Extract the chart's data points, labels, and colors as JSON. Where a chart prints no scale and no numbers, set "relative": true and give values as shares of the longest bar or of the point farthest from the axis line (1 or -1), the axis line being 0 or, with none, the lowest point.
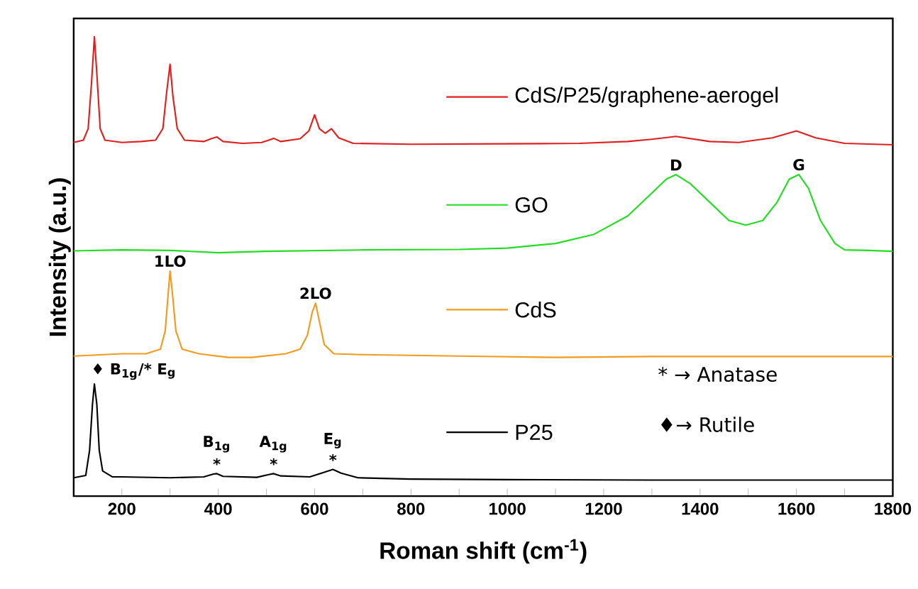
{
  "chart_data": {
    "type": "line",
    "relative": true,
    "xlabel": "Roman shift (cm$^{-1}$)",
    "ylabel": "Intensity (a.u.)",
    "xlim": [
      100,
      1800
    ],
    "xticks": [
      200,
      {
        "value": 300,
        "label": null
      },
      400,
      {
        "value": 500,
        "label": null
      },
      600,
      {
        "value": 700,
        "label": null
      },
      800,
      {
        "value": 900,
        "label": null
      },
      1000,
      {
        "value": 1100,
        "label": null
      },
      1200,
      {
        "value": 1300,
        "label": null
      },
      1400,
      {
        "value": 1500,
        "label": null
      },
      1600,
      {
        "value": 1700,
        "label": null
      },
      1800
    ],
    "tick_labels": "x",
    "grid": false,
    "legend": "right",
    "marker": "none",
    "line_style": "solid",
    "series": [
      {
        "name": "CdS/P25/graphene-aerogel",
        "color": "#e0201f",
        "x": [
          100,
          120,
          130,
          137,
          143,
          148,
          155,
          165,
          200,
          240,
          270,
          285,
          293,
          300,
          306,
          315,
          330,
          370,
          385,
          397,
          410,
          450,
          490,
          505,
          515,
          530,
          570,
          588,
          600,
          610,
          622,
          635,
          650,
          680,
          800,
          1000,
          1150,
          1250,
          1300,
          1350,
          1420,
          1480,
          1550,
          1600,
          1640,
          1700,
          1800
        ],
        "values": [
          0.77,
          0.775,
          0.8,
          0.9,
          1.0,
          0.92,
          0.8,
          0.775,
          0.77,
          0.772,
          0.775,
          0.8,
          0.88,
          0.94,
          0.87,
          0.8,
          0.775,
          0.772,
          0.778,
          0.782,
          0.772,
          0.768,
          0.77,
          0.775,
          0.779,
          0.772,
          0.778,
          0.795,
          0.83,
          0.8,
          0.79,
          0.8,
          0.78,
          0.768,
          0.766,
          0.767,
          0.768,
          0.772,
          0.777,
          0.783,
          0.772,
          0.77,
          0.78,
          0.795,
          0.78,
          0.768,
          0.765
        ]
      },
      {
        "name": "GO",
        "color": "#22dd22",
        "x": [
          100,
          200,
          300,
          400,
          500,
          700,
          900,
          1000,
          1100,
          1180,
          1250,
          1300,
          1330,
          1350,
          1380,
          1420,
          1460,
          1495,
          1530,
          1560,
          1585,
          1605,
          1625,
          1650,
          1680,
          1700,
          1750,
          1800
        ],
        "values": [
          0.534,
          0.536,
          0.535,
          0.53,
          0.533,
          0.536,
          0.537,
          0.54,
          0.55,
          0.57,
          0.61,
          0.66,
          0.69,
          0.7,
          0.68,
          0.64,
          0.6,
          0.59,
          0.6,
          0.64,
          0.69,
          0.7,
          0.67,
          0.6,
          0.55,
          0.536,
          0.535,
          0.533
        ]
      },
      {
        "name": "CdS",
        "color": "#f39b1f",
        "x": [
          100,
          200,
          250,
          280,
          290,
          296,
          300,
          305,
          312,
          325,
          360,
          420,
          470,
          540,
          570,
          585,
          595,
          602,
          610,
          620,
          640,
          700,
          900,
          1100,
          1300,
          1500,
          1800
        ],
        "values": [
          0.305,
          0.31,
          0.31,
          0.32,
          0.36,
          0.44,
          0.49,
          0.44,
          0.36,
          0.32,
          0.31,
          0.302,
          0.302,
          0.31,
          0.32,
          0.35,
          0.4,
          0.42,
          0.38,
          0.33,
          0.31,
          0.308,
          0.305,
          0.302,
          0.304,
          0.304,
          0.304
        ]
      },
      {
        "name": "P25",
        "color": "#000000",
        "x": [
          100,
          125,
          133,
          139,
          143,
          148,
          153,
          160,
          180,
          200,
          300,
          370,
          390,
          397,
          410,
          480,
          505,
          515,
          530,
          590,
          620,
          638,
          655,
          690,
          800,
          1000,
          1300,
          1800
        ],
        "values": [
          0.04,
          0.045,
          0.1,
          0.2,
          0.244,
          0.2,
          0.1,
          0.055,
          0.042,
          0.042,
          0.04,
          0.042,
          0.048,
          0.049,
          0.043,
          0.041,
          0.047,
          0.049,
          0.044,
          0.042,
          0.052,
          0.058,
          0.05,
          0.04,
          0.037,
          0.036,
          0.035,
          0.035
        ]
      }
    ],
    "annotations": [
      {
        "text": "D",
        "x": 1350,
        "y": 0.7
      },
      {
        "text": "G",
        "x": 1605,
        "y": 0.7
      },
      {
        "text": "1LO",
        "x": 300,
        "y": 0.49
      },
      {
        "text": "2LO",
        "x": 602,
        "y": 0.42
      },
      {
        "text": "♦ B$_{1g}$/* E$_{g}$",
        "x": 143,
        "y": 0.244
      },
      {
        "text": "*",
        "x": 397,
        "y": 0.049
      },
      {
        "text": "B$_{1g}$",
        "x": 397,
        "y": 0.049
      },
      {
        "text": "*",
        "x": 515,
        "y": 0.049
      },
      {
        "text": "A$_{1g}$",
        "x": 515,
        "y": 0.049
      },
      {
        "text": "*",
        "x": 638,
        "y": 0.058
      },
      {
        "text": "E$_{g}$",
        "x": 638,
        "y": 0.058
      },
      "* → Anatase",
      "♦→ Rutile"
    ]
  }
}
